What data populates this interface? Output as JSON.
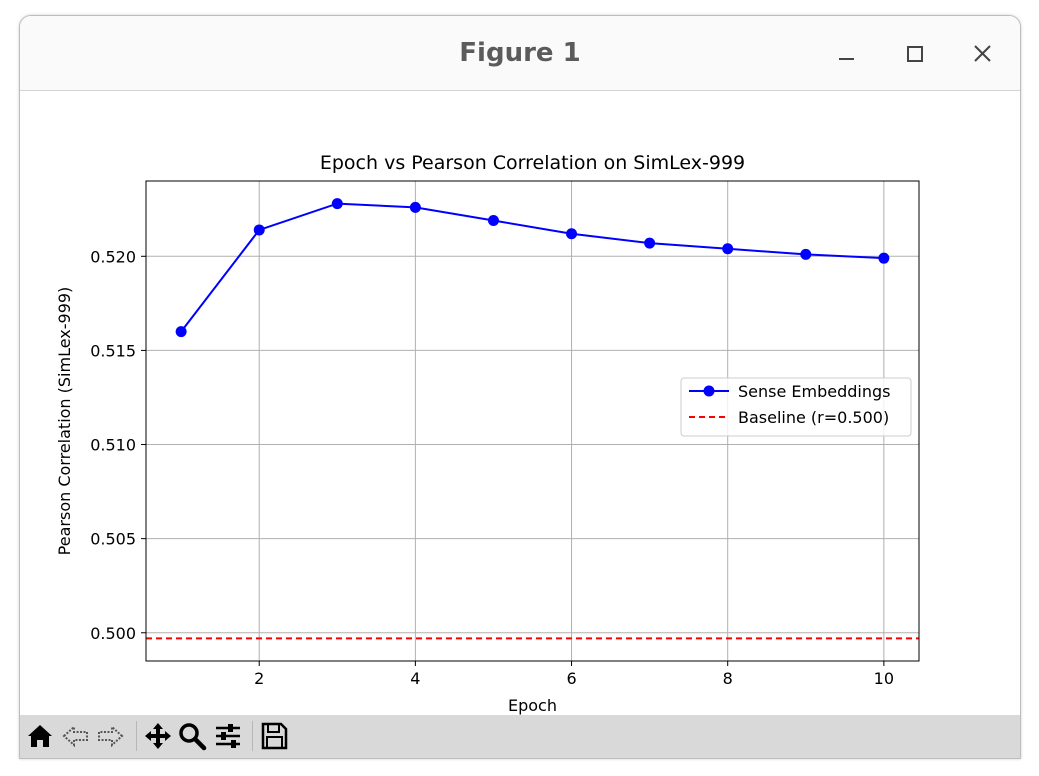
{
  "window": {
    "title": "Figure 1"
  },
  "toolbar": {
    "buttons": [
      {
        "name": "home-button",
        "icon": "home-icon"
      },
      {
        "name": "back-button",
        "icon": "arrow-left-icon"
      },
      {
        "name": "forward-button",
        "icon": "arrow-right-icon"
      },
      {
        "name": "pan-button",
        "icon": "move-icon"
      },
      {
        "name": "zoom-button",
        "icon": "magnifier-icon"
      },
      {
        "name": "configure-subplots-button",
        "icon": "sliders-icon"
      },
      {
        "name": "save-button",
        "icon": "floppy-disk-icon"
      }
    ]
  },
  "chart_data": {
    "type": "line",
    "title": "Epoch vs Pearson Correlation on SimLex-999",
    "xlabel": "Epoch",
    "ylabel": "Pearson Correlation (SimLex-999)",
    "xlim": [
      0.55,
      10.45
    ],
    "ylim": [
      0.4985,
      0.524
    ],
    "xticks": [
      2,
      4,
      6,
      8,
      10
    ],
    "xtick_labels": [
      "2",
      "4",
      "6",
      "8",
      "10"
    ],
    "yticks": [
      0.5,
      0.505,
      0.51,
      0.515,
      0.52
    ],
    "ytick_labels": [
      "0.500",
      "0.505",
      "0.510",
      "0.515",
      "0.520"
    ],
    "grid": true,
    "legend_position": "center-right",
    "series": [
      {
        "name": "Sense Embeddings",
        "color": "#0000ff",
        "style": "solid-marker",
        "x": [
          1,
          2,
          3,
          4,
          5,
          6,
          7,
          8,
          9,
          10
        ],
        "y": [
          0.516,
          0.5214,
          0.5228,
          0.5226,
          0.5219,
          0.5212,
          0.5207,
          0.5204,
          0.5201,
          0.5199
        ]
      }
    ],
    "reference_lines": [
      {
        "name": "Baseline (r=0.500)",
        "color": "#ff0000",
        "style": "dashed",
        "y": 0.4997
      }
    ]
  }
}
